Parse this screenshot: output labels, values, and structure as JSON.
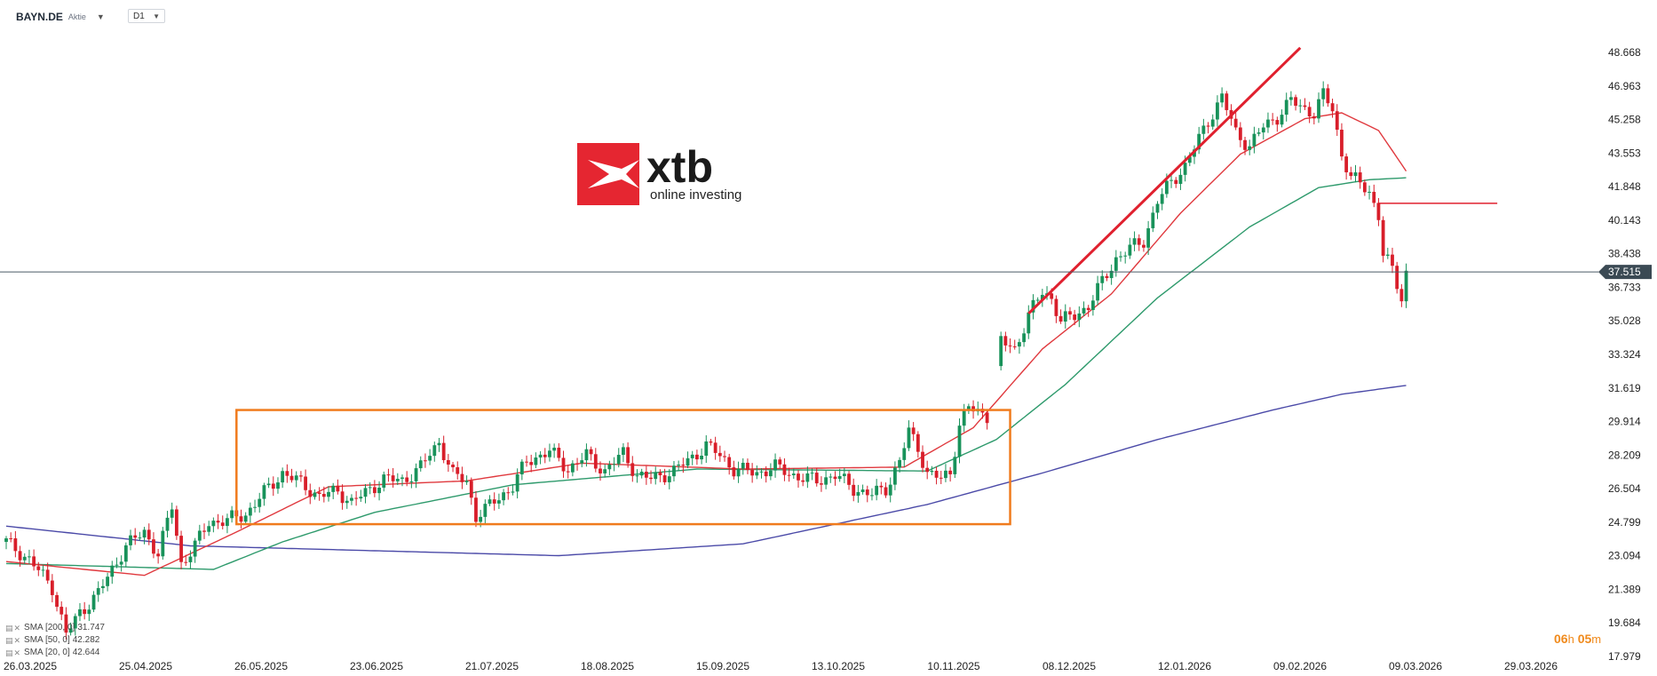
{
  "header": {
    "symbol": "BAYN.DE",
    "instrument_type": "Aktie",
    "timeframe": "D1"
  },
  "logo": {
    "brand": "xtb",
    "tagline": "online investing",
    "color": "#e52631"
  },
  "countdown": {
    "hours": "06",
    "hours_unit": "h",
    "minutes": "05",
    "minutes_unit": "m"
  },
  "colors": {
    "up_candle": "#18925a",
    "down_candle": "#d81e2a",
    "sma20": "#e0393e",
    "sma50": "#2e9a6c",
    "sma200": "#4b4aa8",
    "range_box": "#f07b1d",
    "trend_line": "#e0202e",
    "last_price_badge": "#3b4a54"
  },
  "legend": [
    {
      "label": "SMA [200, 0]",
      "value": "31.747"
    },
    {
      "label": "SMA [50, 0]",
      "value": "42.282"
    },
    {
      "label": "SMA [20, 0]",
      "value": "42.644"
    }
  ],
  "chart_data": {
    "type": "candlestick",
    "y_axis": {
      "ticks": [
        "48.668",
        "46.963",
        "45.258",
        "43.553",
        "41.848",
        "40.143",
        "38.438",
        "36.733",
        "35.028",
        "33.324",
        "31.619",
        "29.914",
        "28.209",
        "26.504",
        "24.799",
        "23.094",
        "21.389",
        "19.684",
        "17.979"
      ],
      "range": [
        17.979,
        48.668
      ],
      "position": "right"
    },
    "x_axis": {
      "ticks": [
        "26.03.2025",
        "25.04.2025",
        "26.05.2025",
        "23.06.2025",
        "21.07.2025",
        "18.08.2025",
        "15.09.2025",
        "13.10.2025",
        "10.11.2025",
        "08.12.2025",
        "12.01.2026",
        "09.02.2026",
        "09.03.2026",
        "29.03.2026"
      ]
    },
    "last_price": "37.515",
    "grid": false,
    "legend_position": "bottom-left",
    "price_path": [
      [
        0,
        23.8
      ],
      [
        5,
        22.9
      ],
      [
        10,
        21.5
      ],
      [
        13,
        19.1
      ],
      [
        16,
        20.2
      ],
      [
        20,
        21.2
      ],
      [
        26,
        23.6
      ],
      [
        30,
        24.3
      ],
      [
        33,
        23.2
      ],
      [
        36,
        25.6
      ],
      [
        38,
        22.7
      ],
      [
        41,
        23.6
      ],
      [
        44,
        24.8
      ],
      [
        48,
        24.9
      ],
      [
        52,
        25.2
      ],
      [
        56,
        26.3
      ],
      [
        60,
        27.3
      ],
      [
        64,
        26.8
      ],
      [
        68,
        26.1
      ],
      [
        72,
        26.4
      ],
      [
        75,
        25.8
      ],
      [
        78,
        26.3
      ],
      [
        82,
        27.0
      ],
      [
        86,
        26.9
      ],
      [
        90,
        27.6
      ],
      [
        94,
        28.9
      ],
      [
        97,
        27.2
      ],
      [
        100,
        26.9
      ],
      [
        102,
        25.1
      ],
      [
        104,
        25.4
      ],
      [
        106,
        25.9
      ],
      [
        110,
        26.6
      ],
      [
        113,
        27.9
      ],
      [
        118,
        28.4
      ],
      [
        122,
        27.5
      ],
      [
        126,
        28.2
      ],
      [
        130,
        27.4
      ],
      [
        134,
        28.3
      ],
      [
        137,
        27.2
      ],
      [
        140,
        27.0
      ],
      [
        145,
        27.4
      ],
      [
        149,
        28.1
      ],
      [
        152,
        28.7
      ],
      [
        155,
        28.2
      ],
      [
        158,
        27.5
      ],
      [
        163,
        27.3
      ],
      [
        167,
        27.6
      ],
      [
        172,
        27.1
      ],
      [
        176,
        26.9
      ],
      [
        180,
        27.2
      ],
      [
        184,
        26.5
      ],
      [
        188,
        26.2
      ],
      [
        191,
        26.5
      ],
      [
        194,
        27.9
      ],
      [
        196,
        29.4
      ],
      [
        198,
        28.6
      ],
      [
        200,
        27.3
      ],
      [
        203,
        27.0
      ],
      [
        205,
        27.3
      ],
      [
        207,
        29.8
      ],
      [
        209,
        30.6
      ],
      [
        211,
        30.4
      ],
      [
        213,
        30.2
      ],
      [
        216,
        34.0
      ],
      [
        219,
        33.6
      ],
      [
        222,
        35.3
      ],
      [
        225,
        36.5
      ],
      [
        227,
        36.2
      ],
      [
        229,
        35.0
      ],
      [
        232,
        35.3
      ],
      [
        235,
        35.8
      ],
      [
        238,
        37.0
      ],
      [
        241,
        38.2
      ],
      [
        244,
        38.7
      ],
      [
        247,
        39.1
      ],
      [
        250,
        41.1
      ],
      [
        253,
        42.1
      ],
      [
        256,
        42.9
      ],
      [
        258,
        43.8
      ],
      [
        261,
        45.2
      ],
      [
        264,
        46.4
      ],
      [
        267,
        44.6
      ],
      [
        270,
        43.9
      ],
      [
        273,
        44.9
      ],
      [
        276,
        45.4
      ],
      [
        279,
        46.2
      ],
      [
        282,
        45.8
      ],
      [
        284,
        45.6
      ],
      [
        286,
        46.5
      ],
      [
        288,
        45.8
      ],
      [
        290,
        43.5
      ],
      [
        292,
        42.3
      ],
      [
        294,
        42.0
      ],
      [
        295,
        41.8
      ],
      [
        296,
        41.6
      ],
      [
        298,
        40.4
      ],
      [
        299,
        38.4
      ],
      [
        301,
        37.6
      ],
      [
        303,
        36.2
      ],
      [
        304,
        37.5
      ]
    ],
    "sma200_path": [
      [
        0,
        24.6
      ],
      [
        40,
        23.6
      ],
      [
        120,
        23.1
      ],
      [
        160,
        23.7
      ],
      [
        200,
        25.7
      ],
      [
        225,
        27.3
      ],
      [
        250,
        29.0
      ],
      [
        275,
        30.5
      ],
      [
        290,
        31.3
      ],
      [
        304,
        31.75
      ]
    ],
    "sma50_path": [
      [
        0,
        22.7
      ],
      [
        45,
        22.4
      ],
      [
        60,
        23.8
      ],
      [
        80,
        25.3
      ],
      [
        110,
        26.7
      ],
      [
        150,
        27.5
      ],
      [
        200,
        27.4
      ],
      [
        215,
        29.0
      ],
      [
        230,
        31.8
      ],
      [
        250,
        36.2
      ],
      [
        270,
        39.8
      ],
      [
        285,
        41.8
      ],
      [
        296,
        42.2
      ],
      [
        304,
        42.3
      ]
    ],
    "sma20_path": [
      [
        0,
        22.8
      ],
      [
        30,
        22.1
      ],
      [
        50,
        24.3
      ],
      [
        70,
        26.6
      ],
      [
        100,
        26.9
      ],
      [
        125,
        27.8
      ],
      [
        160,
        27.5
      ],
      [
        195,
        27.6
      ],
      [
        210,
        29.6
      ],
      [
        225,
        33.6
      ],
      [
        240,
        36.4
      ],
      [
        255,
        40.5
      ],
      [
        268,
        43.5
      ],
      [
        282,
        45.3
      ],
      [
        290,
        45.6
      ],
      [
        298,
        44.7
      ],
      [
        304,
        42.64
      ]
    ],
    "annotations": [
      {
        "type": "rectangle",
        "x": [
          50,
          218
        ],
        "y": [
          24.7,
          30.5
        ]
      },
      {
        "type": "trendline",
        "x": [
          222,
          281
        ],
        "y": [
          35.4,
          48.9
        ]
      },
      {
        "type": "horizontal_ray",
        "x": [
          298,
          318
        ],
        "y": 41.0
      },
      {
        "type": "horizontal_line",
        "y": 37.515
      }
    ]
  }
}
